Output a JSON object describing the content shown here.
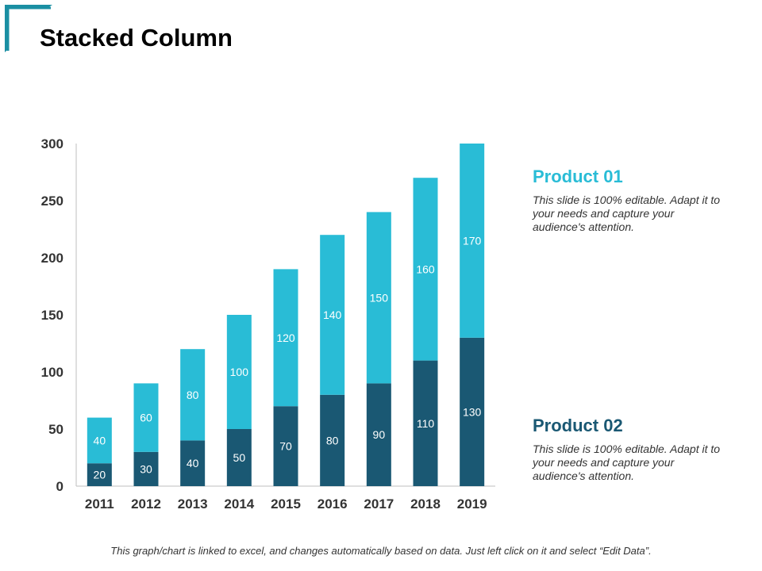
{
  "page": {
    "title": "Stacked Column",
    "footer_note": "This graph/chart is linked to excel, and changes automatically based on data. Just left click on it and select “Edit Data”."
  },
  "legend": [
    {
      "title": "Product 01",
      "description": "This slide is 100% editable. Adapt it to your needs and capture your audience's attention.",
      "color": "#29BCD6"
    },
    {
      "title": "Product 02",
      "description": "This slide is 100% editable. Adapt it to your needs and capture your audience's attention.",
      "color": "#1A5873"
    }
  ],
  "colors": {
    "accent": "#29BCD6",
    "dark": "#1A5873",
    "corner": "#1A8FA3"
  },
  "chart_data": {
    "type": "bar",
    "stacked": true,
    "categories": [
      "2011",
      "2012",
      "2013",
      "2014",
      "2015",
      "2016",
      "2017",
      "2018",
      "2019"
    ],
    "series": [
      {
        "name": "Product 02",
        "values": [
          20,
          30,
          40,
          50,
          70,
          80,
          90,
          110,
          130
        ],
        "color": "#1A5873"
      },
      {
        "name": "Product 01",
        "values": [
          40,
          60,
          80,
          100,
          120,
          140,
          150,
          160,
          170
        ],
        "color": "#29BCD6"
      }
    ],
    "ylim": [
      0,
      300
    ],
    "yticks": [
      0,
      50,
      100,
      150,
      200,
      250,
      300
    ],
    "grid": false,
    "title": "",
    "xlabel": "",
    "ylabel": ""
  }
}
